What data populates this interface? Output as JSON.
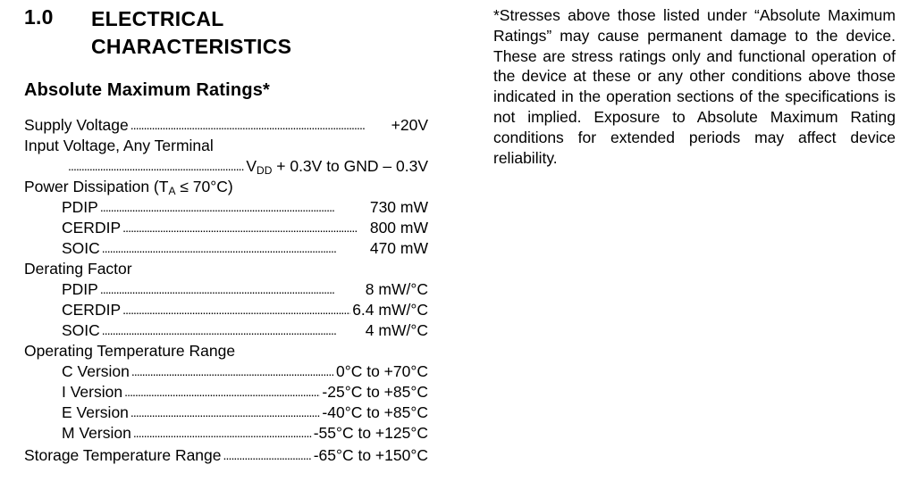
{
  "section": {
    "number": "1.0",
    "title_line1": "ELECTRICAL",
    "title_line2": "CHARACTERISTICS"
  },
  "subheading": "Absolute Maximum Ratings*",
  "ratings": {
    "supply_voltage": {
      "label": "Supply Voltage",
      "value": "+20V"
    },
    "input_voltage": {
      "label": "Input Voltage, Any Terminal",
      "value_v": "V",
      "value_sub": "DD",
      "value_rest": " + 0.3V to GND – 0.3V"
    },
    "power_dissipation": {
      "label_pre": "Power Dissipation (T",
      "label_sub": "A",
      "label_post": " ≤ 70°C)",
      "items": [
        {
          "label": "PDIP",
          "value": "730 mW"
        },
        {
          "label": "CERDIP",
          "value": "800 mW"
        },
        {
          "label": "SOIC",
          "value": "470 mW"
        }
      ]
    },
    "derating_factor": {
      "label": "Derating Factor",
      "items": [
        {
          "label": "PDIP",
          "value": "8 mW/°C"
        },
        {
          "label": "CERDIP",
          "value": "6.4 mW/°C"
        },
        {
          "label": "SOIC",
          "value": "4 mW/°C"
        }
      ]
    },
    "operating_temp": {
      "label": "Operating Temperature Range",
      "items": [
        {
          "label": "C Version",
          "value": "0°C to +70°C"
        },
        {
          "label": "I Version",
          "value": "-25°C to +85°C"
        },
        {
          "label": "E Version",
          "value": "-40°C to +85°C"
        },
        {
          "label": "M Version",
          "value": "-55°C to +125°C"
        }
      ]
    },
    "storage_temp": {
      "label": "Storage Temperature Range",
      "value": "-65°C to +150°C"
    }
  },
  "note": "*Stresses above those listed under “Absolute Maximum Ratings” may cause permanent damage to the device. These are stress ratings only and functional operation of the device at these or any other conditions above those indicated in the operation sections of the specifications is not implied. Exposure to Absolute Maximum Rating conditions for extended periods may affect device reliability."
}
